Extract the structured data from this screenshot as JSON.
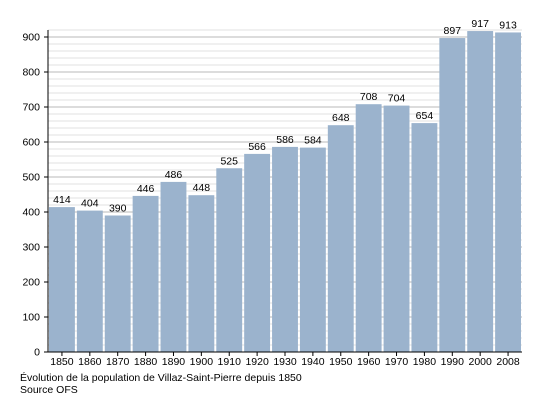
{
  "caption": {
    "line1": "Évolution de la population de Villaz-Saint-Pierre depuis 1850",
    "line2": "Source OFS"
  },
  "colors": {
    "bar": "#9bb3cd",
    "grid_major": "#b8b8b8",
    "grid_minor": "#e2e2e2",
    "axis": "#000000"
  },
  "chart_data": {
    "type": "bar",
    "title": "",
    "xlabel": "",
    "ylabel": "",
    "categories": [
      "1850",
      "1860",
      "1870",
      "1880",
      "1890",
      "1900",
      "1910",
      "1920",
      "1930",
      "1940",
      "1950",
      "1960",
      "1970",
      "1980",
      "1990",
      "2000",
      "2008"
    ],
    "values": [
      414,
      404,
      390,
      446,
      486,
      448,
      525,
      566,
      586,
      584,
      648,
      708,
      704,
      654,
      897,
      917,
      913
    ],
    "ylim": [
      0,
      920
    ],
    "yticks": [
      0,
      100,
      200,
      300,
      400,
      500,
      600,
      700,
      800,
      900
    ],
    "grid": true,
    "legend": "none"
  }
}
